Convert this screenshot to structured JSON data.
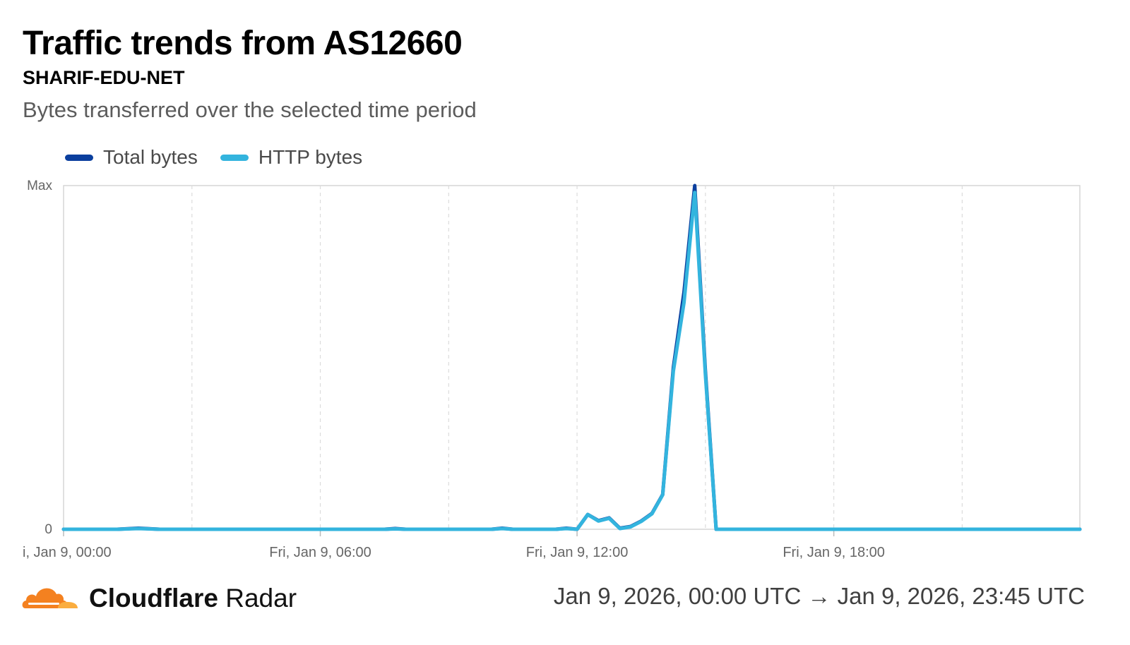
{
  "header": {
    "title": "Traffic trends from AS12660",
    "subtitle": "SHARIF-EDU-NET",
    "description": "Bytes transferred over the selected time period"
  },
  "footer": {
    "brand_bold": "Cloudflare",
    "brand_light": "Radar",
    "date_range": "Jan 9, 2026, 00:00 UTC → Jan 9, 2026, 23:45 UTC",
    "logo_icon": "cloudflare-cloud-logo-icon"
  },
  "chart_data": {
    "type": "line",
    "legend_position": "top-left",
    "grid": "vertical-dashed",
    "x_unit": "hours since Jan 9, 2026 00:00 UTC",
    "xlim": [
      0,
      23.75
    ],
    "ylim": [
      0,
      1
    ],
    "y_ticks": [
      {
        "value": 0,
        "label": "0"
      },
      {
        "value": 1,
        "label": "Max"
      }
    ],
    "x_ticks": [
      {
        "value": 0,
        "label": "i, Jan 9, 00:00"
      },
      {
        "value": 6,
        "label": "Fri, Jan 9, 06:00"
      },
      {
        "value": 12,
        "label": "Fri, Jan 9, 12:00"
      },
      {
        "value": 18,
        "label": "Fri, Jan 9, 18:00"
      }
    ],
    "x_gridlines": [
      3,
      6,
      9,
      12,
      15,
      18,
      21
    ],
    "series": [
      {
        "name": "Total bytes",
        "color": "#0b3f9e",
        "points": [
          [
            0,
            0
          ],
          [
            1.25,
            0
          ],
          [
            1.75,
            0.003
          ],
          [
            2.25,
            0
          ],
          [
            7.5,
            0
          ],
          [
            7.75,
            0.002
          ],
          [
            8,
            0
          ],
          [
            10,
            0
          ],
          [
            10.25,
            0.003
          ],
          [
            10.5,
            0
          ],
          [
            11.5,
            0
          ],
          [
            11.75,
            0.003
          ],
          [
            12,
            0
          ],
          [
            12.25,
            0.043
          ],
          [
            12.5,
            0.025
          ],
          [
            12.75,
            0.033
          ],
          [
            13,
            0.003
          ],
          [
            13.25,
            0.008
          ],
          [
            13.5,
            0.024
          ],
          [
            13.75,
            0.046
          ],
          [
            14,
            0.101
          ],
          [
            14.25,
            0.47
          ],
          [
            14.5,
            0.69
          ],
          [
            14.75,
            1.0
          ],
          [
            15,
            0.46
          ],
          [
            15.25,
            0
          ],
          [
            23.75,
            0
          ]
        ]
      },
      {
        "name": "HTTP bytes",
        "color": "#33b4de",
        "points": [
          [
            0,
            0
          ],
          [
            1.25,
            0
          ],
          [
            1.75,
            0.002
          ],
          [
            2.25,
            0
          ],
          [
            7.5,
            0
          ],
          [
            7.75,
            0.001
          ],
          [
            8,
            0
          ],
          [
            10,
            0
          ],
          [
            10.25,
            0.002
          ],
          [
            10.5,
            0
          ],
          [
            11.5,
            0
          ],
          [
            11.75,
            0.002
          ],
          [
            12,
            0
          ],
          [
            12.25,
            0.043
          ],
          [
            12.5,
            0.024
          ],
          [
            12.75,
            0.032
          ],
          [
            13,
            0.002
          ],
          [
            13.25,
            0.007
          ],
          [
            13.5,
            0.023
          ],
          [
            13.75,
            0.045
          ],
          [
            14,
            0.1
          ],
          [
            14.25,
            0.46
          ],
          [
            14.5,
            0.66
          ],
          [
            14.75,
            0.98
          ],
          [
            15,
            0.45
          ],
          [
            15.25,
            0
          ],
          [
            23.75,
            0
          ]
        ]
      }
    ]
  }
}
